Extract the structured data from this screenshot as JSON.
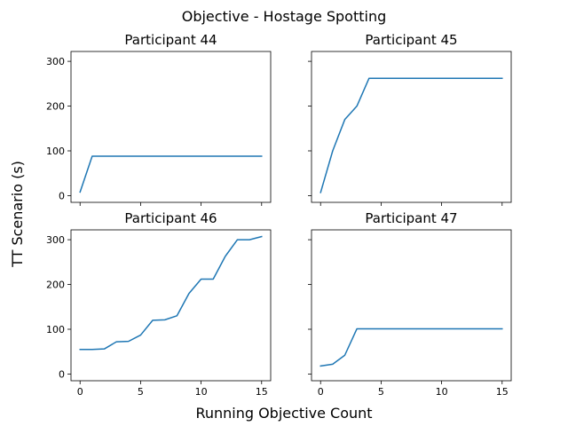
{
  "figure": {
    "suptitle": "Objective - Hostage Spotting",
    "xlabel": "Running Objective Count",
    "ylabel": "TT Scenario (s)"
  },
  "colors": {
    "series": "#1f77b4",
    "axes": "#000000",
    "background": "#ffffff"
  },
  "chart_data": [
    {
      "type": "line",
      "title": "Participant 44",
      "x": [
        0,
        1,
        2,
        3,
        4,
        5,
        6,
        7,
        8,
        9,
        10,
        11,
        12,
        13,
        14,
        15
      ],
      "series": [
        {
          "values": [
            8,
            88,
            88,
            88,
            88,
            88,
            88,
            88,
            88,
            88,
            88,
            88,
            88,
            88,
            88,
            88
          ]
        }
      ],
      "xlim": [
        -0.75,
        15.75
      ],
      "ylim": [
        -15,
        322
      ],
      "xticks": [
        0,
        5,
        10,
        15
      ],
      "yticks": [
        0,
        100,
        200,
        300
      ],
      "show_xticklabels": false,
      "show_yticklabels": true,
      "grid": false
    },
    {
      "type": "line",
      "title": "Participant 45",
      "x": [
        0,
        1,
        2,
        3,
        4,
        5,
        6,
        7,
        8,
        9,
        10,
        11,
        12,
        13,
        14,
        15
      ],
      "series": [
        {
          "values": [
            7,
            100,
            170,
            200,
            262,
            262,
            262,
            262,
            262,
            262,
            262,
            262,
            262,
            262,
            262,
            262
          ]
        }
      ],
      "xlim": [
        -0.75,
        15.75
      ],
      "ylim": [
        -15,
        322
      ],
      "xticks": [
        0,
        5,
        10,
        15
      ],
      "yticks": [
        0,
        100,
        200,
        300
      ],
      "show_xticklabels": false,
      "show_yticklabels": false,
      "grid": false
    },
    {
      "type": "line",
      "title": "Participant 46",
      "x": [
        0,
        1,
        2,
        3,
        4,
        5,
        6,
        7,
        8,
        9,
        10,
        11,
        12,
        13,
        14,
        15
      ],
      "series": [
        {
          "values": [
            55,
            55,
            56,
            72,
            73,
            87,
            120,
            121,
            130,
            180,
            212,
            212,
            263,
            300,
            300,
            307
          ]
        }
      ],
      "xlim": [
        -0.75,
        15.75
      ],
      "ylim": [
        -15,
        322
      ],
      "xticks": [
        0,
        5,
        10,
        15
      ],
      "yticks": [
        0,
        100,
        200,
        300
      ],
      "show_xticklabels": true,
      "show_yticklabels": true,
      "grid": false
    },
    {
      "type": "line",
      "title": "Participant 47",
      "x": [
        0,
        1,
        2,
        3,
        4,
        5,
        6,
        7,
        8,
        9,
        10,
        11,
        12,
        13,
        14,
        15
      ],
      "series": [
        {
          "values": [
            18,
            22,
            42,
            101,
            101,
            101,
            101,
            101,
            101,
            101,
            101,
            101,
            101,
            101,
            101,
            101
          ]
        }
      ],
      "xlim": [
        -0.75,
        15.75
      ],
      "ylim": [
        -15,
        322
      ],
      "xticks": [
        0,
        5,
        10,
        15
      ],
      "yticks": [
        0,
        100,
        200,
        300
      ],
      "show_xticklabels": true,
      "show_yticklabels": false,
      "grid": false
    }
  ]
}
